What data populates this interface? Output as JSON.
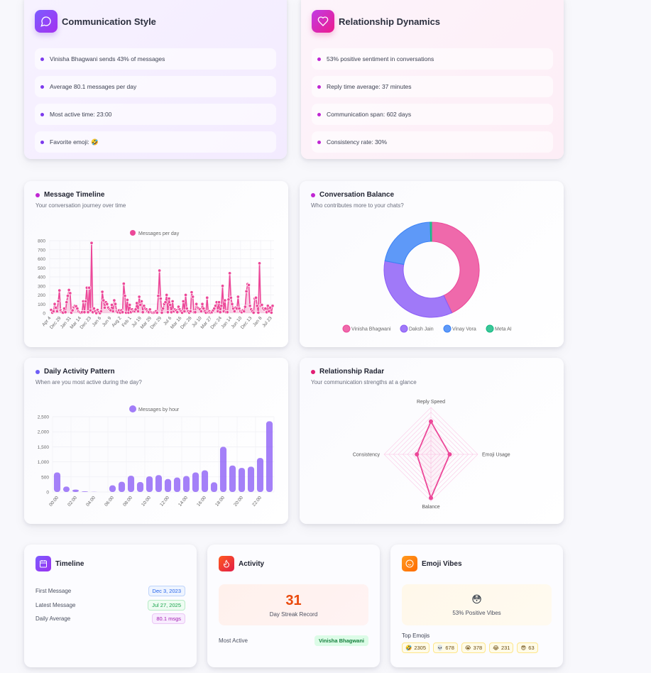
{
  "communication_style": {
    "title": "Communication Style",
    "icon": "chat-bubble-icon",
    "items": [
      "Vinisha Bhagwani sends 43% of messages",
      "Average 80.1 messages per day",
      "Most active time: 23:00",
      "Favorite emoji: 🤣"
    ]
  },
  "relationship_dynamics": {
    "title": "Relationship Dynamics",
    "icon": "heart-icon",
    "items": [
      "53% positive sentiment in conversations",
      "Reply time average: 37 minutes",
      "Communication span: 602 days",
      "Consistency rate: 30%"
    ]
  },
  "message_timeline": {
    "title": "Message Timeline",
    "subtitle": "Your conversation journey over time",
    "legend": "Messages per day"
  },
  "conversation_balance": {
    "title": "Conversation Balance",
    "subtitle": "Who contributes more to your chats?"
  },
  "daily_activity": {
    "title": "Daily Activity Pattern",
    "subtitle": "When are you most active during the day?",
    "legend": "Messages by hour"
  },
  "relationship_radar": {
    "title": "Relationship Radar",
    "subtitle": "Your communication strengths at a glance"
  },
  "timeline_card": {
    "title": "Timeline",
    "icon": "calendar-icon",
    "rows": [
      {
        "label": "First Message",
        "value": "Dec 3, 2023"
      },
      {
        "label": "Latest Message",
        "value": "Jul 27, 2025"
      },
      {
        "label": "Daily Average",
        "value": "80.1 msgs"
      }
    ]
  },
  "activity_card": {
    "title": "Activity",
    "icon": "flame-icon",
    "streak_value": "31",
    "streak_label": "Day Streak Record",
    "most_active_label": "Most Active",
    "most_active_value": "Vinisha Bhagwani"
  },
  "emoji_card": {
    "title": "Emoji Vibes",
    "icon": "smiley-icon",
    "vibe_emoji": "😳",
    "vibe_label": "53% Positive Vibes",
    "top_label": "Top Emojis",
    "top_emojis": [
      {
        "emoji": "🤣",
        "count": "2305"
      },
      {
        "emoji": "💀",
        "count": "678"
      },
      {
        "emoji": "😭",
        "count": "378"
      },
      {
        "emoji": "😂",
        "count": "231"
      },
      {
        "emoji": "😎",
        "count": "63"
      }
    ]
  },
  "colors": {
    "pink": "#ec4899",
    "purple": "#8b5cf6",
    "blue": "#3b82f6",
    "green": "#10b981"
  },
  "chart_data": [
    {
      "type": "line",
      "title": "Message Timeline",
      "legend": [
        "Messages per day"
      ],
      "legend_position": "top",
      "xlabel": "",
      "ylabel": "",
      "ylim": [
        0,
        800
      ],
      "yticks": [
        0,
        100,
        200,
        300,
        400,
        500,
        600,
        700,
        800
      ],
      "x_tick_labels": [
        "Apr 4",
        "Dec 29",
        "Jan 31",
        "Mar 14",
        "Dec 23",
        "Jan 6",
        "Jun 9",
        "Aug 2",
        "Feb 1",
        "Jul 19",
        "Mar 29",
        "Dec 29",
        "Jul 6",
        "Mar 16",
        "Dec 28",
        "Jul 10",
        "Mar 27",
        "Dec 24",
        "Jan 14",
        "Jun 10",
        "Dec 13",
        "Jan 8",
        "Jul 23"
      ],
      "grid": true,
      "series": [
        {
          "name": "Messages per day",
          "color": "#ec4899",
          "values": [
            35,
            5,
            20,
            100,
            60,
            20,
            130,
            250,
            30,
            10,
            5,
            50,
            10,
            120,
            190,
            255,
            220,
            5,
            30,
            65,
            80,
            75,
            50,
            20,
            10,
            5,
            10,
            130,
            10,
            130,
            280,
            10,
            280,
            30,
            775,
            10,
            50,
            20,
            0,
            35,
            10,
            0,
            20,
            235,
            140,
            60,
            120,
            100,
            60,
            40,
            30,
            90,
            20,
            140,
            100,
            20,
            10,
            30,
            5,
            30,
            10,
            325,
            190,
            5,
            145,
            5,
            90,
            10,
            40,
            20,
            20,
            40,
            110,
            20,
            180,
            90,
            130,
            10,
            80,
            50,
            40,
            20,
            10,
            40,
            10,
            5,
            5,
            10,
            20,
            5,
            190,
            470,
            160,
            5,
            50,
            100,
            120,
            200,
            10,
            160,
            90,
            10,
            130,
            20,
            40,
            30,
            10,
            70,
            40,
            20,
            5,
            130,
            20,
            200,
            50,
            20,
            5,
            20,
            230,
            180,
            10,
            10,
            100,
            60,
            50,
            40,
            20,
            100,
            50,
            20,
            5,
            170,
            10,
            20,
            5,
            10,
            30,
            50,
            80,
            120,
            20,
            120,
            10,
            80,
            300,
            20,
            140,
            10,
            10,
            150,
            440,
            170,
            100,
            50,
            20,
            60,
            50,
            180,
            50,
            20,
            10,
            30,
            20,
            70,
            240,
            320,
            310,
            80,
            40,
            20,
            5,
            160,
            170,
            80,
            5,
            550,
            80,
            90,
            50,
            40,
            50,
            10,
            80,
            20,
            60,
            5,
            80
          ]
        }
      ]
    },
    {
      "type": "pie",
      "variant": "doughnut",
      "title": "Conversation Balance",
      "legend_position": "bottom",
      "categories": [
        "Vinisha Bhagwani",
        "Daksh Jain",
        "Vinay Vora",
        "Meta AI"
      ],
      "values": [
        43,
        35,
        21.5,
        0.5
      ],
      "colors": [
        "#ec4899",
        "#8b5cf6",
        "#3b82f6",
        "#10b981"
      ]
    },
    {
      "type": "bar",
      "title": "Daily Activity Pattern",
      "legend": [
        "Messages by hour"
      ],
      "legend_position": "top",
      "categories": [
        "00:00",
        "01:00",
        "02:00",
        "03:00",
        "04:00",
        "05:00",
        "06:00",
        "07:00",
        "08:00",
        "09:00",
        "10:00",
        "11:00",
        "12:00",
        "13:00",
        "14:00",
        "15:00",
        "16:00",
        "17:00",
        "18:00",
        "19:00",
        "20:00",
        "21:00",
        "22:00",
        "23:00"
      ],
      "x_tick_labels": [
        "00:00",
        "02:00",
        "04:00",
        "06:00",
        "08:00",
        "10:00",
        "12:00",
        "14:00",
        "16:00",
        "18:00",
        "20:00",
        "22:00"
      ],
      "values": [
        650,
        180,
        80,
        20,
        5,
        0,
        220,
        340,
        540,
        330,
        520,
        560,
        430,
        480,
        530,
        650,
        720,
        320,
        1500,
        880,
        800,
        840,
        1130,
        2350
      ],
      "ylim": [
        0,
        2500
      ],
      "yticks": [
        0,
        500,
        1000,
        1500,
        2000,
        2500
      ],
      "ytick_labels": [
        "0",
        "500",
        "1,000",
        "1,500",
        "2,000",
        "2,500"
      ],
      "grid": true,
      "color": "#8b5cf6"
    },
    {
      "type": "radar",
      "title": "Relationship Radar",
      "categories": [
        "Reply Speed",
        "Emoji Usage",
        "Balance",
        "Consistency"
      ],
      "values": [
        70,
        40,
        93,
        30
      ],
      "rlim": [
        0,
        100
      ],
      "color": "#ec4899"
    }
  ]
}
